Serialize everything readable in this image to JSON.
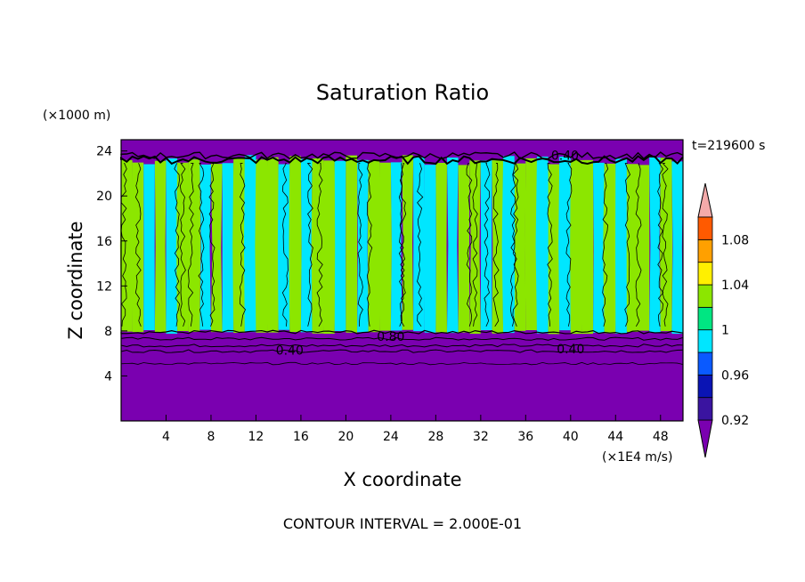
{
  "chart_data": {
    "type": "heatmap",
    "title": "Saturation Ratio",
    "xlabel": "X coordinate",
    "ylabel": "Z coordinate",
    "x_unit_label": "(×1E4 m/s)",
    "y_unit_label": "(×1000 m)",
    "time_label": "t=219600 s",
    "footer": "CONTOUR INTERVAL = 2.000E-01",
    "xlim": [
      0,
      50
    ],
    "ylim": [
      0,
      25
    ],
    "x_ticks": [
      4,
      8,
      12,
      16,
      20,
      24,
      28,
      32,
      36,
      40,
      44,
      48
    ],
    "y_ticks": [
      4,
      8,
      12,
      16,
      20,
      24
    ],
    "colorbar": {
      "levels": [
        0.92,
        0.94,
        0.96,
        0.98,
        1.0,
        1.02,
        1.04,
        1.06,
        1.08,
        1.1
      ],
      "tick_labels": [
        "0.92",
        "0.96",
        "1",
        "1.04",
        "1.08"
      ],
      "tick_values": [
        0.92,
        0.96,
        1.0,
        1.04,
        1.08
      ],
      "colors": {
        "under": "#7a00b0",
        "b0": "#3a14a0",
        "b1": "#0a14b4",
        "b2": "#0a5aff",
        "b3": "#00e6ff",
        "b4": "#00e682",
        "b5": "#8ce600",
        "b6": "#fff000",
        "b7": "#ffa000",
        "b8": "#ff5a00",
        "b9": "#ff1e1e",
        "over": "#f4aaaa"
      }
    },
    "contour_labels": [
      {
        "text": "0.40",
        "x": 15.0,
        "z": 6.3
      },
      {
        "text": "0.80",
        "x": 24.0,
        "z": 7.5
      },
      {
        "text": "0.40",
        "x": 40.0,
        "z": 6.4
      },
      {
        "text": "0.40",
        "x": 39.5,
        "z": 23.6
      }
    ],
    "regions": {
      "subsaturated_below_z": 7.8,
      "subsaturated_above_z": 23.2,
      "column_ratios": [
        1.02,
        1.02,
        0.99,
        1.02,
        0.99,
        1.02,
        1.02,
        0.99,
        1.02,
        0.99,
        1.02,
        0.99,
        1.02,
        1.02,
        0.99,
        1.02,
        0.99,
        1.02,
        1.02,
        0.99,
        1.02,
        0.99,
        1.02,
        1.02,
        0.99,
        1.02,
        0.99,
        0.99,
        1.02,
        0.99,
        1.02,
        1.02,
        0.99,
        1.02,
        0.99,
        1.02,
        1.02,
        0.99,
        1.02,
        0.99,
        1.02,
        1.02,
        0.99,
        1.02,
        0.99,
        1.02,
        1.02,
        0.99,
        1.02,
        0.99
      ]
    }
  }
}
